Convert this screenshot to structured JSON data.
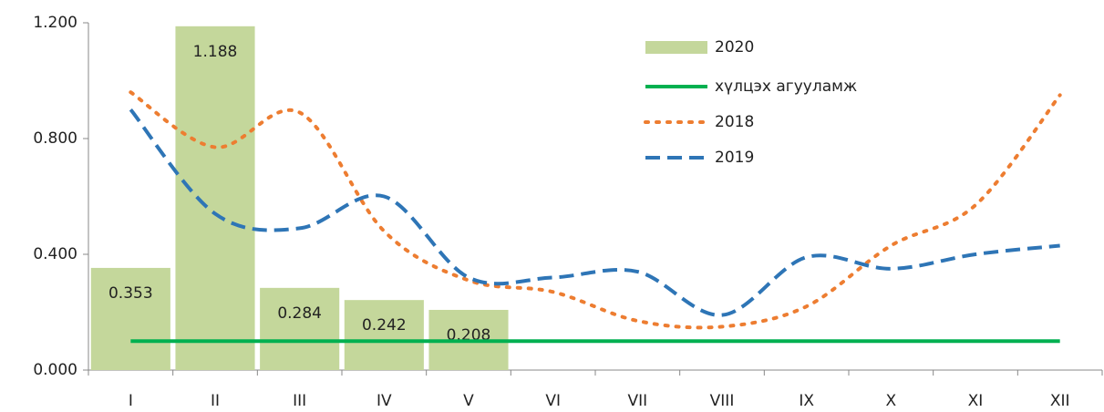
{
  "chart_data": {
    "type": "bar",
    "categories": [
      "I",
      "II",
      "III",
      "IV",
      "V",
      "VI",
      "VII",
      "VIII",
      "IX",
      "X",
      "XI",
      "XII"
    ],
    "series": [
      {
        "name": "2020",
        "type": "bar",
        "color": "#c4d79b",
        "values": [
          0.353,
          1.188,
          0.284,
          0.242,
          0.208,
          null,
          null,
          null,
          null,
          null,
          null,
          null
        ]
      },
      {
        "name": "хүлцэх агууламж",
        "type": "line",
        "style": "solid",
        "color": "#00b050",
        "values": [
          0.1,
          0.1,
          0.1,
          0.1,
          0.1,
          0.1,
          0.1,
          0.1,
          0.1,
          0.1,
          0.1,
          0.1
        ]
      },
      {
        "name": "2018",
        "type": "line",
        "style": "dotted",
        "color": "#ed7d31",
        "values": [
          0.96,
          0.77,
          0.89,
          0.48,
          0.31,
          0.27,
          0.17,
          0.15,
          0.22,
          0.43,
          0.57,
          0.95
        ]
      },
      {
        "name": "2019",
        "type": "line",
        "style": "dashed",
        "color": "#2e75b6",
        "values": [
          0.9,
          0.54,
          0.49,
          0.6,
          0.32,
          0.32,
          0.34,
          0.19,
          0.39,
          0.35,
          0.4,
          0.43
        ]
      }
    ],
    "ylim": [
      0,
      1.2
    ],
    "yticks": [
      {
        "value": 0,
        "label": "0.000"
      },
      {
        "value": 0.4,
        "label": "0.400"
      },
      {
        "value": 0.8,
        "label": "0.800"
      },
      {
        "value": 1.2,
        "label": "1.200"
      }
    ],
    "legend": "top-right"
  }
}
